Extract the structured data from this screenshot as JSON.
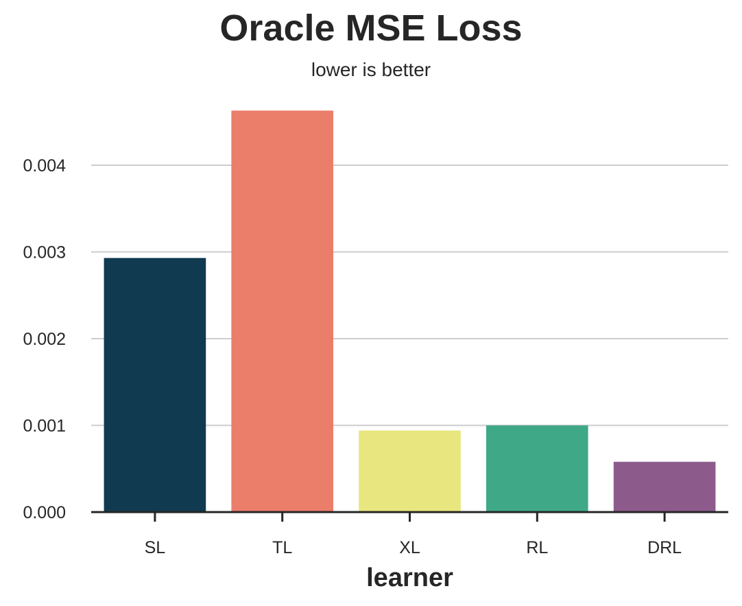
{
  "chart_data": {
    "type": "bar",
    "title": "Oracle MSE Loss",
    "subtitle": "lower is better",
    "xlabel": "learner",
    "ylabel": "",
    "categories": [
      "SL",
      "TL",
      "XL",
      "RL",
      "DRL"
    ],
    "values": [
      0.00293,
      0.00463,
      0.00094,
      0.001,
      0.00058
    ],
    "colors": [
      "#0f3a4f",
      "#eb7d6b",
      "#e8e67e",
      "#3fa887",
      "#8c5b8c"
    ],
    "ylim": [
      0,
      0.0048
    ],
    "yticks": [
      "0.000",
      "0.001",
      "0.002",
      "0.003",
      "0.004"
    ],
    "grid": "horizontal",
    "legend": "none"
  }
}
